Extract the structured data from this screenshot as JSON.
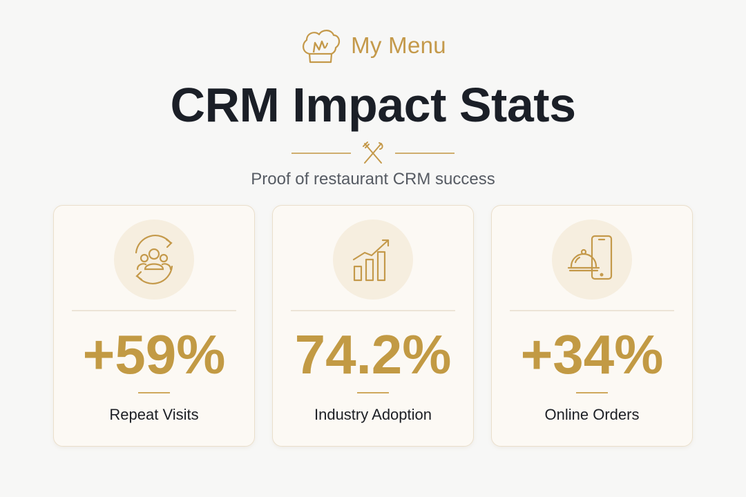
{
  "brand": {
    "name": "My Menu",
    "logo_icon": "chef-hat-icon",
    "accent_color": "#c4994a"
  },
  "header": {
    "title": "CRM Impact Stats",
    "subtitle": "Proof of restaurant CRM success",
    "ornament_icon": "fork-knife-icon"
  },
  "cards": [
    {
      "icon": "repeat-customers-icon",
      "value": "+59%",
      "label": "Repeat Visits"
    },
    {
      "icon": "growth-chart-icon",
      "value": "74.2%",
      "label": "Industry Adoption"
    },
    {
      "icon": "mobile-order-cloche-icon",
      "value": "+34%",
      "label": "Online Orders"
    }
  ],
  "colors": {
    "gold": "#c29a44",
    "title": "#1b1f27",
    "card_bg": "#fcf9f4"
  }
}
